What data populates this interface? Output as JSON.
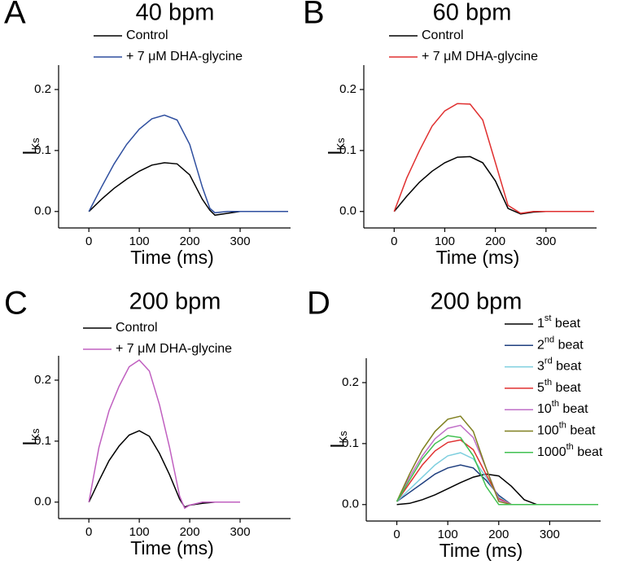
{
  "chart_data": [
    {
      "type": "line",
      "panel": "A",
      "title": "40 bpm",
      "xlabel": "Time (ms)",
      "ylabel": "IKs",
      "x": [
        0,
        25,
        50,
        75,
        100,
        125,
        150,
        175,
        200,
        225,
        240,
        250,
        275,
        300,
        350,
        395
      ],
      "series": [
        {
          "name": "Control",
          "color": "#000000",
          "values": [
            0,
            0.02,
            0.038,
            0.053,
            0.066,
            0.076,
            0.08,
            0.078,
            0.06,
            0.02,
            0.002,
            -0.006,
            -0.003,
            0,
            0,
            0
          ]
        },
        {
          "name": "+ 7 μM DHA-glycine",
          "color": "#2f4f9f",
          "values": [
            0,
            0.04,
            0.078,
            0.11,
            0.135,
            0.152,
            0.158,
            0.15,
            0.11,
            0.04,
            0.005,
            -0.002,
            0,
            0,
            0,
            0
          ]
        }
      ],
      "xlim": [
        -60,
        400
      ],
      "ylim": [
        -0.027,
        0.24
      ],
      "xticks": [
        0,
        100,
        200,
        300
      ],
      "yticks": [
        {
          "value": 0,
          "label": "0.0"
        },
        0.1,
        0.2
      ],
      "legend": "top"
    },
    {
      "type": "line",
      "panel": "B",
      "title": "60 bpm",
      "xlabel": "Time (ms)",
      "ylabel": "IKs",
      "x": [
        0,
        25,
        50,
        75,
        100,
        125,
        150,
        175,
        200,
        225,
        250,
        275,
        300,
        350,
        395
      ],
      "series": [
        {
          "name": "Control",
          "color": "#000000",
          "values": [
            0,
            0.025,
            0.048,
            0.066,
            0.08,
            0.089,
            0.09,
            0.08,
            0.05,
            0.005,
            -0.004,
            -0.001,
            0,
            0,
            0
          ]
        },
        {
          "name": "+ 7 μM DHA-glycine",
          "color": "#e03030",
          "values": [
            0,
            0.055,
            0.1,
            0.14,
            0.165,
            0.177,
            0.176,
            0.15,
            0.08,
            0.01,
            -0.003,
            0,
            0,
            0,
            0
          ]
        }
      ],
      "xlim": [
        -60,
        400
      ],
      "ylim": [
        -0.027,
        0.24
      ],
      "xticks": [
        0,
        100,
        200,
        300
      ],
      "yticks": [
        {
          "value": 0,
          "label": "0.0"
        },
        0.1,
        0.2
      ],
      "legend": "top"
    },
    {
      "type": "line",
      "panel": "C",
      "title": "200 bpm",
      "xlabel": "Time (ms)",
      "ylabel": "IKs",
      "x": [
        0,
        20,
        40,
        60,
        80,
        100,
        120,
        140,
        160,
        180,
        190,
        200,
        225,
        250,
        300
      ],
      "series": [
        {
          "name": "Control",
          "color": "#000000",
          "values": [
            0,
            0.035,
            0.068,
            0.092,
            0.11,
            0.117,
            0.108,
            0.08,
            0.045,
            0.005,
            -0.008,
            -0.005,
            -0.002,
            0,
            0
          ]
        },
        {
          "name": "+ 7 μM DHA-glycine",
          "color": "#c060c0",
          "values": [
            0,
            0.09,
            0.15,
            0.19,
            0.222,
            0.233,
            0.215,
            0.16,
            0.09,
            0.01,
            -0.01,
            -0.005,
            0,
            0,
            0
          ]
        }
      ],
      "xlim": [
        -60,
        400
      ],
      "ylim": [
        -0.027,
        0.24
      ],
      "xticks": [
        0,
        100,
        200,
        300
      ],
      "yticks": [
        {
          "value": 0,
          "label": "0.0"
        },
        0.1,
        0.2
      ],
      "legend": "top"
    },
    {
      "type": "line",
      "panel": "D",
      "title": "200 bpm",
      "xlabel": "Time (ms)",
      "ylabel": "IKs",
      "x": [
        0,
        25,
        50,
        75,
        100,
        125,
        150,
        175,
        200,
        225,
        250,
        275,
        300,
        350,
        395
      ],
      "series": [
        {
          "name": "1st beat",
          "color": "#000000",
          "values": [
            0,
            0.002,
            0.008,
            0.016,
            0.026,
            0.036,
            0.045,
            0.05,
            0.047,
            0.03,
            0.008,
            0,
            0,
            0,
            0
          ]
        },
        {
          "name": "2nd beat",
          "color": "#1f3f7f",
          "values": [
            0.005,
            0.02,
            0.035,
            0.05,
            0.06,
            0.065,
            0.06,
            0.04,
            0.015,
            0,
            0,
            0,
            0,
            0,
            0
          ]
        },
        {
          "name": "3rd beat",
          "color": "#7fcfdf",
          "values": [
            0.005,
            0.025,
            0.045,
            0.065,
            0.08,
            0.085,
            0.075,
            0.045,
            0.012,
            0,
            0,
            0,
            0,
            0,
            0
          ]
        },
        {
          "name": "5th beat",
          "color": "#e03030",
          "values": [
            0.005,
            0.035,
            0.065,
            0.088,
            0.102,
            0.106,
            0.09,
            0.05,
            0.01,
            0,
            0,
            0,
            0,
            0,
            0
          ]
        },
        {
          "name": "10th beat",
          "color": "#c070c8",
          "values": [
            0.005,
            0.045,
            0.08,
            0.108,
            0.125,
            0.13,
            0.11,
            0.06,
            0.008,
            0,
            0,
            0,
            0,
            0,
            0
          ]
        },
        {
          "name": "100th beat",
          "color": "#808020",
          "values": [
            0.005,
            0.05,
            0.09,
            0.12,
            0.14,
            0.145,
            0.12,
            0.06,
            0.005,
            0,
            0,
            0,
            0,
            0,
            0
          ]
        },
        {
          "name": "1000th beat",
          "color": "#40c050",
          "values": [
            0.005,
            0.04,
            0.075,
            0.1,
            0.113,
            0.11,
            0.08,
            0.03,
            0,
            0,
            0,
            0,
            0,
            0,
            0
          ]
        }
      ],
      "xlim": [
        -60,
        400
      ],
      "ylim": [
        -0.027,
        0.24
      ],
      "xticks": [
        0,
        100,
        200,
        300
      ],
      "yticks": [
        {
          "value": 0,
          "label": "0.0"
        },
        0.1,
        0.2
      ],
      "legend": "right"
    }
  ]
}
